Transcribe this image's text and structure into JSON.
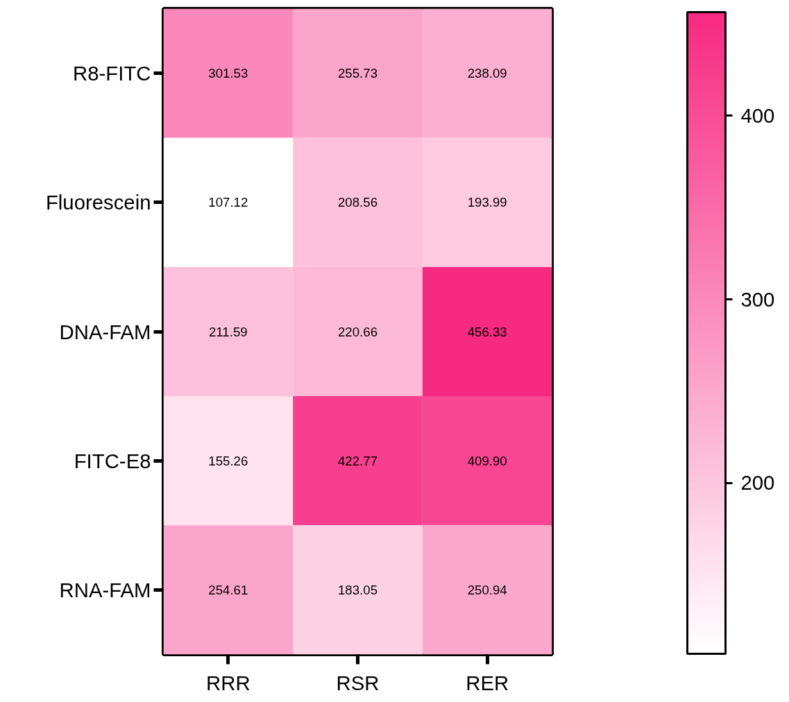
{
  "chart_data": {
    "type": "heatmap",
    "categories": [
      "RRR",
      "RSR",
      "RER"
    ],
    "y_categories": [
      "R8-FITC",
      "Fluorescein",
      "DNA-FAM",
      "FITC-E8",
      "RNA-FAM"
    ],
    "cells": [
      [
        301.53,
        255.73,
        238.09
      ],
      [
        107.12,
        208.56,
        193.99
      ],
      [
        211.59,
        220.66,
        456.33
      ],
      [
        155.26,
        422.77,
        409.9
      ],
      [
        254.61,
        183.05,
        250.94
      ]
    ],
    "data_labels": true,
    "cell_labels": [
      [
        "301.53",
        "255.73",
        "238.09"
      ],
      [
        "107.12",
        "208.56",
        "193.99"
      ],
      [
        "211.59",
        "220.66",
        "456.33"
      ],
      [
        "155.26",
        "422.77",
        "409.90"
      ],
      [
        "254.61",
        "183.05",
        "250.94"
      ]
    ],
    "clim": [
      107.12,
      456.33
    ],
    "cticks": [
      200,
      300,
      400
    ],
    "colors": [
      "#ffffff",
      "#f72a82"
    ]
  }
}
